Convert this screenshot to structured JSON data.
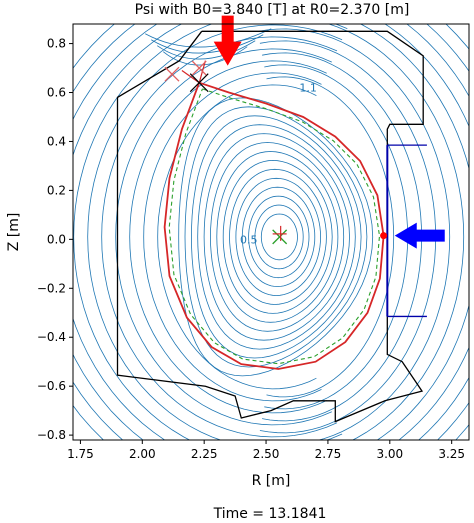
{
  "title": "Psi with B0=3.840 [T] at R0=2.370 [m]",
  "footer": "Time = 13.1841",
  "chart_data": {
    "type": "contour",
    "title": "Psi with B0=3.840 [T] at R0=2.370 [m]",
    "xlabel": "R [m]",
    "ylabel": "Z [m]",
    "xlim": [
      1.72,
      3.32
    ],
    "ylim": [
      -0.82,
      0.88
    ],
    "xticks": [
      1.75,
      2.0,
      2.25,
      2.5,
      2.75,
      3.0,
      3.25
    ],
    "xtick_labels": [
      "1.75",
      "2.00",
      "2.25",
      "2.50",
      "2.75",
      "3.00",
      "3.25"
    ],
    "yticks": [
      -0.8,
      -0.6,
      -0.4,
      -0.2,
      0.0,
      0.2,
      0.4,
      0.6,
      0.8
    ],
    "ytick_labels": [
      "−0.8",
      "−0.6",
      "−0.4",
      "−0.2",
      "0.0",
      "0.2",
      "0.4",
      "0.6",
      "0.8"
    ],
    "contour_labels": [
      {
        "text": "1.1",
        "x": 2.67,
        "y": 0.62
      },
      {
        "text": "0.5",
        "x": 2.43,
        "y": 0.0
      }
    ],
    "magnetic_axis": {
      "r": 2.555,
      "z": 0.01
    },
    "xpoint": {
      "r": 2.23,
      "z": 0.64
    },
    "outer_midplane_point": {
      "r": 2.975,
      "z": 0.015
    },
    "strike_markers": [
      {
        "r": 2.12,
        "z": 0.675
      },
      {
        "r": 2.23,
        "z": 0.7
      }
    ],
    "separatrix": [
      [
        2.23,
        0.64
      ],
      [
        2.35,
        0.6
      ],
      [
        2.5,
        0.555
      ],
      [
        2.65,
        0.5
      ],
      [
        2.78,
        0.42
      ],
      [
        2.88,
        0.32
      ],
      [
        2.95,
        0.18
      ],
      [
        2.975,
        0.015
      ],
      [
        2.96,
        -0.16
      ],
      [
        2.91,
        -0.3
      ],
      [
        2.82,
        -0.42
      ],
      [
        2.7,
        -0.5
      ],
      [
        2.55,
        -0.53
      ],
      [
        2.4,
        -0.51
      ],
      [
        2.28,
        -0.44
      ],
      [
        2.18,
        -0.32
      ],
      [
        2.11,
        -0.15
      ],
      [
        2.09,
        0.05
      ],
      [
        2.11,
        0.25
      ],
      [
        2.16,
        0.45
      ],
      [
        2.23,
        0.64
      ]
    ],
    "wall_outline": [
      [
        2.24,
        0.85
      ],
      [
        2.99,
        0.85
      ],
      [
        3.135,
        0.75
      ],
      [
        3.135,
        0.47
      ],
      [
        3.0,
        0.47
      ],
      [
        2.99,
        0.45
      ],
      [
        2.99,
        -0.47
      ],
      [
        3.05,
        -0.5
      ],
      [
        3.13,
        -0.62
      ],
      [
        2.98,
        -0.66
      ],
      [
        2.78,
        -0.745
      ],
      [
        2.78,
        -0.66
      ],
      [
        2.61,
        -0.66
      ],
      [
        2.52,
        -0.7
      ],
      [
        2.4,
        -0.73
      ],
      [
        2.375,
        -0.64
      ],
      [
        2.255,
        -0.6
      ],
      [
        1.9,
        -0.555
      ],
      [
        1.9,
        0.58
      ],
      [
        2.15,
        0.73
      ],
      [
        2.24,
        0.85
      ]
    ],
    "arrows": [
      {
        "color": "#ff0000",
        "direction": "down",
        "r": 2.345,
        "z": 0.71
      },
      {
        "color": "#0000ff",
        "direction": "left",
        "r": 3.02,
        "z": 0.015
      }
    ],
    "colors": {
      "contour": "#1f77b4",
      "separatrix": "#d62728",
      "green_dash": "#2ca02c",
      "wall": "#000000",
      "blue_limiter": "#0000aa"
    }
  }
}
